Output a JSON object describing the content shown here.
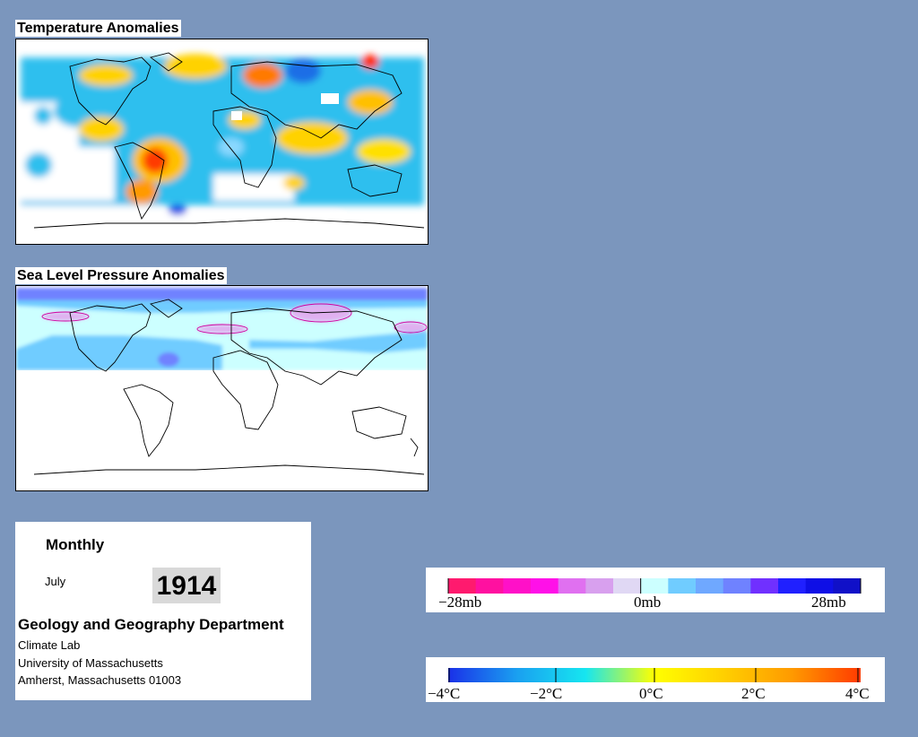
{
  "panels": {
    "temperature": {
      "title": "Temperature Anomalies"
    },
    "pressure": {
      "title": "Sea Level Pressure Anomalies"
    }
  },
  "info": {
    "frequency": "Monthly",
    "month": "July",
    "year": "1914",
    "department": "Geology and Geography Department",
    "lab": "Climate Lab",
    "university": "University of Massachusetts",
    "address": "Amherst, Massachusetts 01003"
  },
  "pressure_legend": {
    "labels": [
      "−28mb",
      "0mb",
      "28mb"
    ],
    "colors": [
      "#ff1a6e",
      "#ff10a0",
      "#ff10c8",
      "#ff10e8",
      "#e070f0",
      "#d8a0ee",
      "#e0d8f4",
      "#ccffff",
      "#70ccff",
      "#6fa8ff",
      "#6f82ff",
      "#7030ff",
      "#2020ff",
      "#0f0fe6",
      "#1010c8"
    ]
  },
  "temperature_legend": {
    "labels": [
      "−4°C",
      "−2°C",
      "0°C",
      "2°C",
      "4°C"
    ],
    "gradient": [
      "#1a30e8",
      "#1aa0f0",
      "#16e6f0",
      "#ffff00",
      "#ffd000",
      "#ff9a00",
      "#ff3a00"
    ]
  },
  "colors": {
    "background": "#7b96bd",
    "land_outline": "#000000"
  }
}
